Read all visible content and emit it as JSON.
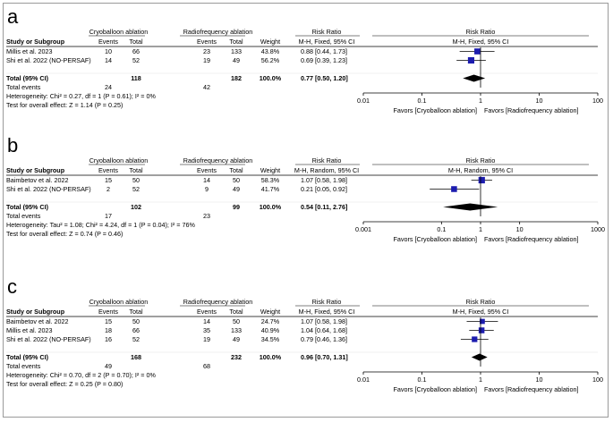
{
  "figure": {
    "chart_data": [
      {
        "type": "forest",
        "label": "a",
        "group1": "Cryoballoon ablation",
        "group2": "Radiofrequency ablation",
        "headers": {
          "study": "Study or Subgroup",
          "events1": "Events",
          "total1": "Total",
          "events2": "Events",
          "total2": "Total",
          "weight": "Weight",
          "rr_title": "Risk Ratio",
          "rr_method": "M-H, Fixed, 95% CI",
          "plot_title": "Risk Ratio",
          "plot_method": "M-H, Fixed, 95% CI"
        },
        "studies": [
          {
            "name": "Millis et al. 2023",
            "events1": "10",
            "total1": "66",
            "events2": "23",
            "total2": "133",
            "weight": "43.8%",
            "ci_text": "0.88 [0.44, 1.73]",
            "rr": 0.88,
            "lo": 0.44,
            "hi": 1.73,
            "w": 43.8
          },
          {
            "name": "Shi et al. 2022 (NO-PERSAF)",
            "events1": "14",
            "total1": "52",
            "events2": "19",
            "total2": "49",
            "weight": "56.2%",
            "ci_text": "0.69 [0.39, 1.23]",
            "rr": 0.69,
            "lo": 0.39,
            "hi": 1.23,
            "w": 56.2
          }
        ],
        "total": {
          "label": "Total (95% CI)",
          "total1": "118",
          "total2": "182",
          "weight": "100.0%",
          "ci_text": "0.77 [0.50, 1.20]",
          "rr": 0.77,
          "lo": 0.5,
          "hi": 1.2
        },
        "total_events": {
          "label": "Total events",
          "events1": "24",
          "events2": "42"
        },
        "heterogeneity": "Heterogeneity: Chi² = 0.27, df = 1 (P = 0.61); I² = 0%",
        "overall": "Test for overall effect: Z = 1.14 (P = 0.25)",
        "axis": {
          "min": 0.01,
          "max": 100,
          "ticks": [
            0.01,
            0.1,
            1,
            10,
            100
          ],
          "tick_labels": [
            "0.01",
            "0.1",
            "1",
            "10",
            "100"
          ]
        },
        "favors_left": "Favors [Cryoballoon ablation]",
        "favors_right": "Favors [Radiofrequency ablation]"
      },
      {
        "type": "forest",
        "label": "b",
        "group1": "Cryoballoon ablation",
        "group2": "Radiofrequency ablation",
        "headers": {
          "study": "Study or Subgroup",
          "events1": "Events",
          "total1": "Total",
          "events2": "Events",
          "total2": "Total",
          "weight": "Weight",
          "rr_title": "Risk Ratio",
          "rr_method": "M-H, Random, 95% CI",
          "plot_title": "Risk Ratio",
          "plot_method": "M-H, Random, 95% CI"
        },
        "studies": [
          {
            "name": "Baimbetov et al. 2022",
            "events1": "15",
            "total1": "50",
            "events2": "14",
            "total2": "50",
            "weight": "58.3%",
            "ci_text": "1.07 [0.58, 1.98]",
            "rr": 1.07,
            "lo": 0.58,
            "hi": 1.98,
            "w": 58.3
          },
          {
            "name": "Shi et al. 2022 (NO-PERSAF)",
            "events1": "2",
            "total1": "52",
            "events2": "9",
            "total2": "49",
            "weight": "41.7%",
            "ci_text": "0.21 [0.05, 0.92]",
            "rr": 0.21,
            "lo": 0.05,
            "hi": 0.92,
            "w": 41.7
          }
        ],
        "total": {
          "label": "Total (95% CI)",
          "total1": "102",
          "total2": "99",
          "weight": "100.0%",
          "ci_text": "0.54 [0.11, 2.76]",
          "rr": 0.54,
          "lo": 0.11,
          "hi": 2.76
        },
        "total_events": {
          "label": "Total events",
          "events1": "17",
          "events2": "23"
        },
        "heterogeneity": "Heterogeneity: Tau² = 1.08; Chi² = 4.24, df = 1 (P = 0.04); I² = 76%",
        "overall": "Test for overall effect: Z = 0.74 (P = 0.46)",
        "axis": {
          "min": 0.001,
          "max": 1000,
          "ticks": [
            0.001,
            0.1,
            1,
            10,
            1000
          ],
          "tick_labels": [
            "0.001",
            "0.1",
            "1",
            "10",
            "1000"
          ]
        },
        "favors_left": "Favors [Cryoballoon ablation]",
        "favors_right": "Favors [Radiofrequency ablation]"
      },
      {
        "type": "forest",
        "label": "c",
        "group1": "Cryoballoon ablation",
        "group2": "Radiofrequency ablation",
        "headers": {
          "study": "Study or Subgroup",
          "events1": "Events",
          "total1": "Total",
          "events2": "Events",
          "total2": "Total",
          "weight": "Weight",
          "rr_title": "Risk Ratio",
          "rr_method": "M-H, Fixed, 95% CI",
          "plot_title": "Risk Ratio",
          "plot_method": "M-H, Fixed, 95% CI"
        },
        "studies": [
          {
            "name": "Baimbetov et al. 2022",
            "events1": "15",
            "total1": "50",
            "events2": "14",
            "total2": "50",
            "weight": "24.7%",
            "ci_text": "1.07 [0.58, 1.98]",
            "rr": 1.07,
            "lo": 0.58,
            "hi": 1.98,
            "w": 24.7
          },
          {
            "name": "Millis et al. 2023",
            "events1": "18",
            "total1": "66",
            "events2": "35",
            "total2": "133",
            "weight": "40.9%",
            "ci_text": "1.04 [0.64, 1.68]",
            "rr": 1.04,
            "lo": 0.64,
            "hi": 1.68,
            "w": 40.9
          },
          {
            "name": "Shi et al. 2022 (NO-PERSAF)",
            "events1": "16",
            "total1": "52",
            "events2": "19",
            "total2": "49",
            "weight": "34.5%",
            "ci_text": "0.79 [0.46, 1.36]",
            "rr": 0.79,
            "lo": 0.46,
            "hi": 1.36,
            "w": 34.5
          }
        ],
        "total": {
          "label": "Total (95% CI)",
          "total1": "168",
          "total2": "232",
          "weight": "100.0%",
          "ci_text": "0.96 [0.70, 1.31]",
          "rr": 0.96,
          "lo": 0.7,
          "hi": 1.31
        },
        "total_events": {
          "label": "Total events",
          "events1": "49",
          "events2": "68"
        },
        "heterogeneity": "Heterogeneity: Chi² = 0.70, df = 2 (P = 0.70); I² = 0%",
        "overall": "Test for overall effect: Z = 0.25 (P = 0.80)",
        "axis": {
          "min": 0.01,
          "max": 100,
          "ticks": [
            0.01,
            0.1,
            1,
            10,
            100
          ],
          "tick_labels": [
            "0.01",
            "0.1",
            "1",
            "10",
            "100"
          ]
        },
        "favors_left": "Favors [Cryoballoon ablation]",
        "favors_right": "Favors [Radiofrequency ablation]"
      }
    ]
  },
  "colors": {
    "marker": "#1c1caf",
    "line": "#000000",
    "text": "#000000",
    "frame": "#9a9a9a"
  }
}
